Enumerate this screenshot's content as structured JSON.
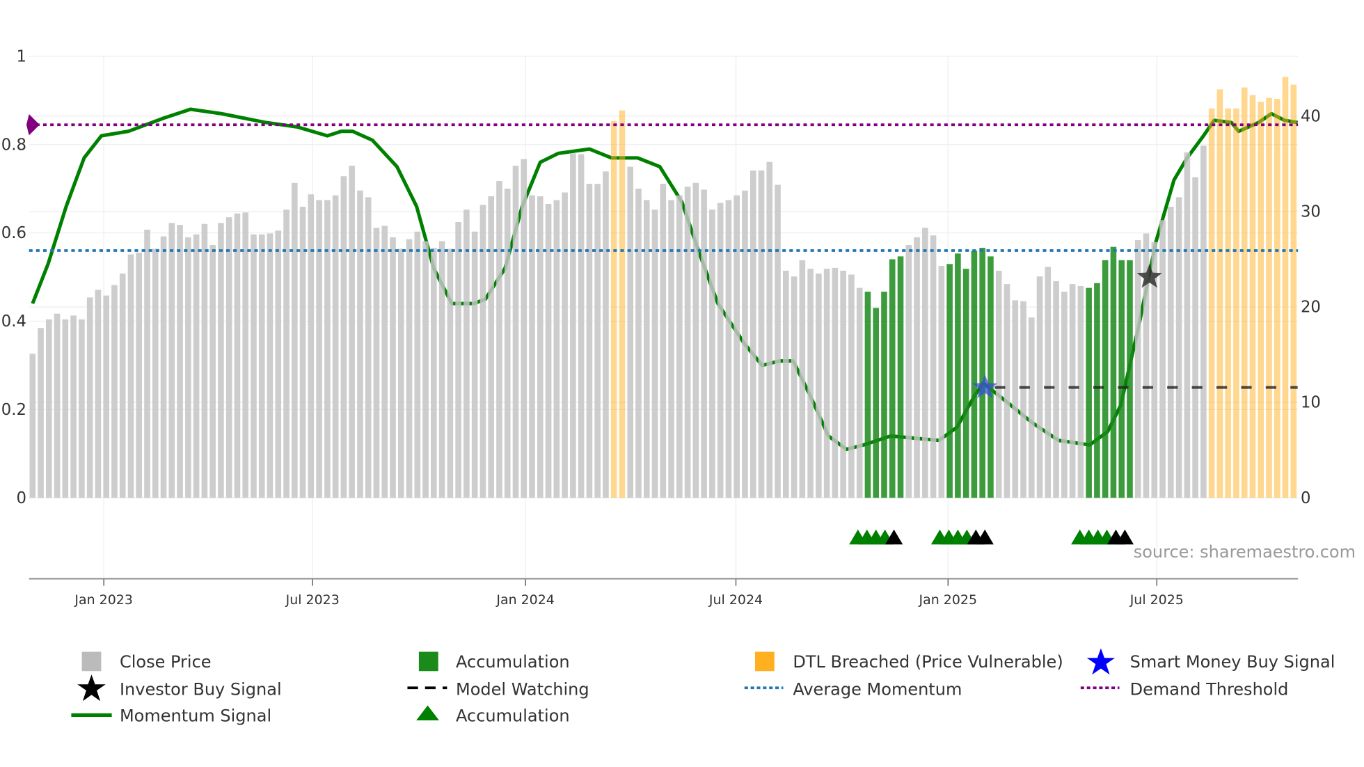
{
  "chart_data": {
    "type": "bar",
    "x_unit": "week index",
    "x_ticks": [
      {
        "label": "Jan 2023",
        "week": 8.7
      },
      {
        "label": "Jul 2023",
        "week": 34.2
      },
      {
        "label": "Jan 2024",
        "week": 60.2
      },
      {
        "label": "Jul 2024",
        "week": 85.9
      },
      {
        "label": "Jan 2025",
        "week": 111.8
      },
      {
        "label": "Jul 2025",
        "week": 137.3
      }
    ],
    "y_left": {
      "ticks": [
        "0",
        "0.2",
        "0.4",
        "0.6",
        "0.8",
        "1"
      ],
      "range": [
        0,
        1
      ]
    },
    "y_right": {
      "ticks": [
        "0",
        "10",
        "20",
        "30",
        "40"
      ],
      "range": [
        0,
        46.3
      ]
    },
    "close_price": [
      15.1,
      17.8,
      18.7,
      19.3,
      18.7,
      19.1,
      18.7,
      21.0,
      21.8,
      21.2,
      22.3,
      23.5,
      25.5,
      25.7,
      28.1,
      26.1,
      27.4,
      28.8,
      28.6,
      27.3,
      27.6,
      28.7,
      26.5,
      28.8,
      29.4,
      29.8,
      29.9,
      27.6,
      27.6,
      27.7,
      28.0,
      30.2,
      33.0,
      30.5,
      31.8,
      31.2,
      31.2,
      31.7,
      33.7,
      34.8,
      32.2,
      31.5,
      28.3,
      28.5,
      27.3,
      26.1,
      27.1,
      27.9,
      26.9,
      26.2,
      26.9,
      26.1,
      28.9,
      30.2,
      27.9,
      30.7,
      31.6,
      33.2,
      32.4,
      34.8,
      35.5,
      31.7,
      31.6,
      30.8,
      31.2,
      32.0,
      36.1,
      36.0,
      32.9,
      32.9,
      34.2,
      39.5,
      40.6,
      34.7,
      32.4,
      31.2,
      30.2,
      32.9,
      31.2,
      31.7,
      32.6,
      33.0,
      32.3,
      30.2,
      30.9,
      31.2,
      31.7,
      32.2,
      34.3,
      34.3,
      35.2,
      32.8,
      23.8,
      23.2,
      24.9,
      24.0,
      23.5,
      24.0,
      24.1,
      23.8,
      23.4,
      22.0,
      21.6,
      19.9,
      21.6,
      25.0,
      25.3,
      26.5,
      27.3,
      28.3,
      27.5,
      24.3,
      24.5,
      25.6,
      24.0,
      25.9,
      26.2,
      25.3,
      23.8,
      22.4,
      20.7,
      20.6,
      18.9,
      23.2,
      24.2,
      22.7,
      21.6,
      22.4,
      22.2,
      22.0,
      22.5,
      24.9,
      26.3,
      24.9,
      24.9,
      27.0,
      27.7,
      26.8,
      29.1,
      30.5,
      31.5,
      36.2,
      33.6,
      36.9,
      40.8,
      42.8,
      40.8,
      40.8,
      43.0,
      42.2,
      41.5,
      41.9,
      41.8,
      44.1,
      43.3
    ],
    "accumulation_weeks": [
      102,
      103,
      104,
      105,
      106,
      112,
      113,
      114,
      115,
      116,
      117,
      129,
      130,
      131,
      132,
      133,
      134
    ],
    "dtl_breached_weeks": [
      71,
      72,
      144,
      145,
      146,
      147,
      148,
      149,
      150,
      151,
      152,
      153,
      154
    ],
    "momentum": [
      [
        0,
        0.44
      ],
      [
        1.9,
        0.53
      ],
      [
        4.1,
        0.66
      ],
      [
        6.3,
        0.77
      ],
      [
        8.4,
        0.82
      ],
      [
        11.7,
        0.83
      ],
      [
        16.0,
        0.86
      ],
      [
        19.3,
        0.88
      ],
      [
        23.1,
        0.87
      ],
      [
        28.5,
        0.85
      ],
      [
        32.3,
        0.84
      ],
      [
        36.0,
        0.82
      ],
      [
        37.7,
        0.83
      ],
      [
        39.1,
        0.83
      ],
      [
        41.5,
        0.81
      ],
      [
        44.5,
        0.75
      ],
      [
        46.9,
        0.66
      ],
      [
        49.0,
        0.52
      ],
      [
        51.2,
        0.44
      ],
      [
        53.9,
        0.44
      ],
      [
        55.3,
        0.45
      ],
      [
        57.7,
        0.52
      ],
      [
        59.8,
        0.66
      ],
      [
        62.0,
        0.76
      ],
      [
        64.2,
        0.78
      ],
      [
        68.0,
        0.79
      ],
      [
        70.7,
        0.77
      ],
      [
        73.9,
        0.77
      ],
      [
        76.6,
        0.75
      ],
      [
        79.3,
        0.67
      ],
      [
        81.5,
        0.55
      ],
      [
        83.7,
        0.44
      ],
      [
        86.9,
        0.35
      ],
      [
        89.1,
        0.3
      ],
      [
        91.2,
        0.31
      ],
      [
        92.9,
        0.31
      ],
      [
        95.0,
        0.23
      ],
      [
        97.2,
        0.14
      ],
      [
        99.4,
        0.11
      ],
      [
        101.5,
        0.12
      ],
      [
        104.8,
        0.14
      ],
      [
        110.7,
        0.13
      ],
      [
        112.9,
        0.16
      ],
      [
        115.0,
        0.23
      ],
      [
        116.1,
        0.26
      ],
      [
        118.8,
        0.22
      ],
      [
        122.1,
        0.17
      ],
      [
        125.3,
        0.13
      ],
      [
        129.1,
        0.12
      ],
      [
        131.3,
        0.15
      ],
      [
        132.9,
        0.21
      ],
      [
        135.1,
        0.39
      ],
      [
        137.2,
        0.58
      ],
      [
        139.4,
        0.72
      ],
      [
        141.0,
        0.77
      ],
      [
        143.0,
        0.82
      ],
      [
        144.3,
        0.855
      ],
      [
        146.4,
        0.85
      ],
      [
        147.3,
        0.83
      ],
      [
        149.7,
        0.85
      ],
      [
        151.3,
        0.87
      ],
      [
        152.9,
        0.855
      ],
      [
        154.5,
        0.85
      ]
    ],
    "average_momentum": 0.56,
    "demand_threshold": 0.845,
    "model_watching": {
      "level": 0.25,
      "from_week": 117.5,
      "to_week": 154.5
    },
    "smart_money_buy_signal": {
      "week": 116.3,
      "value": 0.25
    },
    "investor_buy_signal": {
      "week": 136.4,
      "value": 0.5
    },
    "accumulation_triangles": [
      100.8,
      101.9,
      103.0,
      104.1,
      110.8,
      111.9,
      113.0,
      114.1,
      127.9,
      129.0,
      130.1,
      131.2
    ],
    "watch_triangles": [
      105.2,
      115.2,
      116.3,
      132.3,
      133.4
    ],
    "legend": [
      {
        "label": "Close Price",
        "color": "#bbbbbb"
      },
      {
        "label": "Accumulation",
        "color": "#1a8a1a"
      },
      {
        "label": "DTL Breached (Price Vulnerable)",
        "color": "#ffb020"
      },
      {
        "label": "Smart Money Buy Signal",
        "color": "#0000ff"
      },
      {
        "label": "Investor Buy Signal",
        "color": "#000000"
      },
      {
        "label": "Model Watching",
        "color": "#000000"
      },
      {
        "label": "Average Momentum",
        "color": "#1f77b4"
      },
      {
        "label": "Demand Threshold",
        "color": "#800080"
      },
      {
        "label": "Momentum Signal",
        "color": "#008000"
      },
      {
        "label": "Accumulation",
        "color": "#008000"
      }
    ],
    "source": "source: sharemaestro.com"
  }
}
